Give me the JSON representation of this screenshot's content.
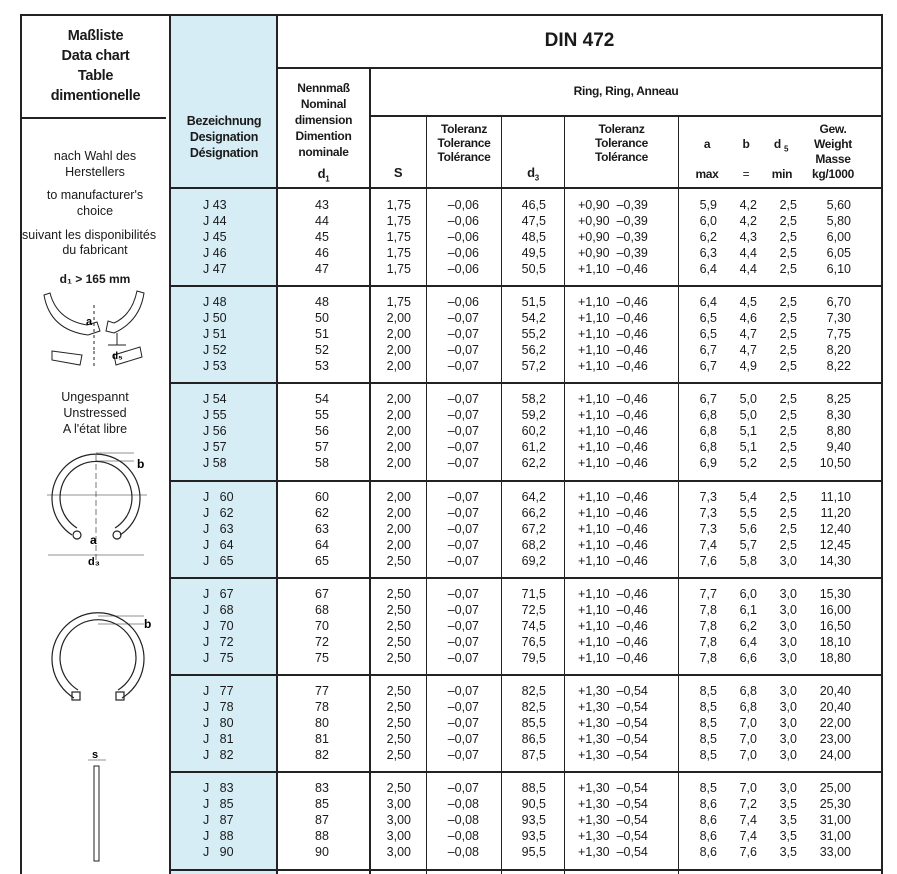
{
  "title_block": {
    "lines": [
      "Maßliste",
      "Data chart",
      "Table",
      "dimentionelle"
    ]
  },
  "standard": "DIN 472",
  "group_header": "Ring, Ring, Anneau",
  "columns": {
    "designation": [
      "Bezeichnung",
      "Designation",
      "Désignation"
    ],
    "nominal": [
      "Nennmaß",
      "Nominal",
      "dimension",
      "Dimention",
      "nominale"
    ],
    "nominal_symbol": "d",
    "nominal_sub": "1",
    "s": "S",
    "tol_s": [
      "Toleranz",
      "Tolerance",
      "Tolérance"
    ],
    "d3": "d",
    "d3_sub": "3",
    "tol_d3": [
      "Toleranz",
      "Tolerance",
      "Tolérance"
    ],
    "a": "a",
    "a_note": "max",
    "b": "b",
    "b_note": "=",
    "d5": "d",
    "d5_sub": "5",
    "d5_note": "min",
    "weight": [
      "Gew.",
      "Weight",
      "Masse",
      "kg/1000"
    ]
  },
  "left_notes": {
    "choice": [
      "nach Wahl des",
      "Herstellers",
      "to manufacturer's",
      "choice",
      "suivant les disponibilités",
      "du fabricant"
    ],
    "large_label": "d₁ > 165 mm",
    "unstressed": [
      "Ungespannt",
      "Unstressed",
      "A l'état libre"
    ],
    "fig_labels": {
      "a": "a",
      "d5": "d₅",
      "b": "b",
      "d3": "d₃",
      "s": "s"
    }
  },
  "rows": [
    [
      "J 43",
      "43",
      "1,75",
      "–0,06",
      "46,5",
      "+0,90  –0,39",
      "5,9",
      "4,2",
      "2,5",
      "5,60"
    ],
    [
      "J 44",
      "44",
      "1,75",
      "–0,06",
      "47,5",
      "+0,90  –0,39",
      "6,0",
      "4,2",
      "2,5",
      "5,80"
    ],
    [
      "J 45",
      "45",
      "1,75",
      "–0,06",
      "48,5",
      "+0,90  –0,39",
      "6,2",
      "4,3",
      "2,5",
      "6,00"
    ],
    [
      "J 46",
      "46",
      "1,75",
      "–0,06",
      "49,5",
      "+0,90  –0,39",
      "6,3",
      "4,4",
      "2,5",
      "6,05"
    ],
    [
      "J 47",
      "47",
      "1,75",
      "–0,06",
      "50,5",
      "+1,10  –0,46",
      "6,4",
      "4,4",
      "2,5",
      "6,10"
    ],
    [
      "J 48",
      "48",
      "1,75",
      "–0,06",
      "51,5",
      "+1,10  –0,46",
      "6,4",
      "4,5",
      "2,5",
      "6,70"
    ],
    [
      "J 50",
      "50",
      "2,00",
      "–0,07",
      "54,2",
      "+1,10  –0,46",
      "6,5",
      "4,6",
      "2,5",
      "7,30"
    ],
    [
      "J 51",
      "51",
      "2,00",
      "–0,07",
      "55,2",
      "+1,10  –0,46",
      "6,5",
      "4,7",
      "2,5",
      "7,75"
    ],
    [
      "J 52",
      "52",
      "2,00",
      "–0,07",
      "56,2",
      "+1,10  –0,46",
      "6,7",
      "4,7",
      "2,5",
      "8,20"
    ],
    [
      "J 53",
      "53",
      "2,00",
      "–0,07",
      "57,2",
      "+1,10  –0,46",
      "6,7",
      "4,9",
      "2,5",
      "8,22"
    ],
    [
      "J 54",
      "54",
      "2,00",
      "–0,07",
      "58,2",
      "+1,10  –0,46",
      "6,7",
      "5,0",
      "2,5",
      "8,25"
    ],
    [
      "J 55",
      "55",
      "2,00",
      "–0,07",
      "59,2",
      "+1,10  –0,46",
      "6,8",
      "5,0",
      "2,5",
      "8,30"
    ],
    [
      "J 56",
      "56",
      "2,00",
      "–0,07",
      "60,2",
      "+1,10  –0,46",
      "6,8",
      "5,1",
      "2,5",
      "8,80"
    ],
    [
      "J 57",
      "57",
      "2,00",
      "–0,07",
      "61,2",
      "+1,10  –0,46",
      "6,8",
      "5,1",
      "2,5",
      "9,40"
    ],
    [
      "J 58",
      "58",
      "2,00",
      "–0,07",
      "62,2",
      "+1,10  –0,46",
      "6,9",
      "5,2",
      "2,5",
      "10,50"
    ],
    [
      "J   60",
      "60",
      "2,00",
      "–0,07",
      "64,2",
      "+1,10  –0,46",
      "7,3",
      "5,4",
      "2,5",
      "11,10"
    ],
    [
      "J   62",
      "62",
      "2,00",
      "–0,07",
      "66,2",
      "+1,10  –0,46",
      "7,3",
      "5,5",
      "2,5",
      "11,20"
    ],
    [
      "J   63",
      "63",
      "2,00",
      "–0,07",
      "67,2",
      "+1,10  –0,46",
      "7,3",
      "5,6",
      "2,5",
      "12,40"
    ],
    [
      "J   64",
      "64",
      "2,00",
      "–0,07",
      "68,2",
      "+1,10  –0,46",
      "7,4",
      "5,7",
      "2,5",
      "12,45"
    ],
    [
      "J   65",
      "65",
      "2,50",
      "–0,07",
      "69,2",
      "+1,10  –0,46",
      "7,6",
      "5,8",
      "3,0",
      "14,30"
    ],
    [
      "J   67",
      "67",
      "2,50",
      "–0,07",
      "71,5",
      "+1,10  –0,46",
      "7,7",
      "6,0",
      "3,0",
      "15,30"
    ],
    [
      "J   68",
      "68",
      "2,50",
      "–0,07",
      "72,5",
      "+1,10  –0,46",
      "7,8",
      "6,1",
      "3,0",
      "16,00"
    ],
    [
      "J   70",
      "70",
      "2,50",
      "–0,07",
      "74,5",
      "+1,10  –0,46",
      "7,8",
      "6,2",
      "3,0",
      "16,50"
    ],
    [
      "J   72",
      "72",
      "2,50",
      "–0,07",
      "76,5",
      "+1,10  –0,46",
      "7,8",
      "6,4",
      "3,0",
      "18,10"
    ],
    [
      "J   75",
      "75",
      "2,50",
      "–0,07",
      "79,5",
      "+1,10  –0,46",
      "7,8",
      "6,6",
      "3,0",
      "18,80"
    ],
    [
      "J   77",
      "77",
      "2,50",
      "–0,07",
      "82,5",
      "+1,30  –0,54",
      "8,5",
      "6,8",
      "3,0",
      "20,40"
    ],
    [
      "J   78",
      "78",
      "2,50",
      "–0,07",
      "82,5",
      "+1,30  –0,54",
      "8,5",
      "6,8",
      "3,0",
      "20,40"
    ],
    [
      "J   80",
      "80",
      "2,50",
      "–0,07",
      "85,5",
      "+1,30  –0,54",
      "8,5",
      "7,0",
      "3,0",
      "22,00"
    ],
    [
      "J   81",
      "81",
      "2,50",
      "–0,07",
      "86,5",
      "+1,30  –0,54",
      "8,5",
      "7,0",
      "3,0",
      "23,00"
    ],
    [
      "J   82",
      "82",
      "2,50",
      "–0,07",
      "87,5",
      "+1,30  –0,54",
      "8,5",
      "7,0",
      "3,0",
      "24,00"
    ],
    [
      "J   83",
      "83",
      "2,50",
      "–0,07",
      "88,5",
      "+1,30  –0,54",
      "8,5",
      "7,0",
      "3,0",
      "25,00"
    ],
    [
      "J   85",
      "85",
      "3,00",
      "–0,08",
      "90,5",
      "+1,30  –0,54",
      "8,6",
      "7,2",
      "3,5",
      "25,30"
    ],
    [
      "J   87",
      "87",
      "3,00",
      "–0,08",
      "93,5",
      "+1,30  –0,54",
      "8,6",
      "7,4",
      "3,5",
      "31,00"
    ],
    [
      "J   88",
      "88",
      "3,00",
      "–0,08",
      "93,5",
      "+1,30  –0,54",
      "8,6",
      "7,4",
      "3,5",
      "31,00"
    ],
    [
      "J   90",
      "90",
      "3,00",
      "–0,08",
      "95,5",
      "+1,30  –0,54",
      "8,6",
      "7,6",
      "3,5",
      "33,00"
    ]
  ]
}
